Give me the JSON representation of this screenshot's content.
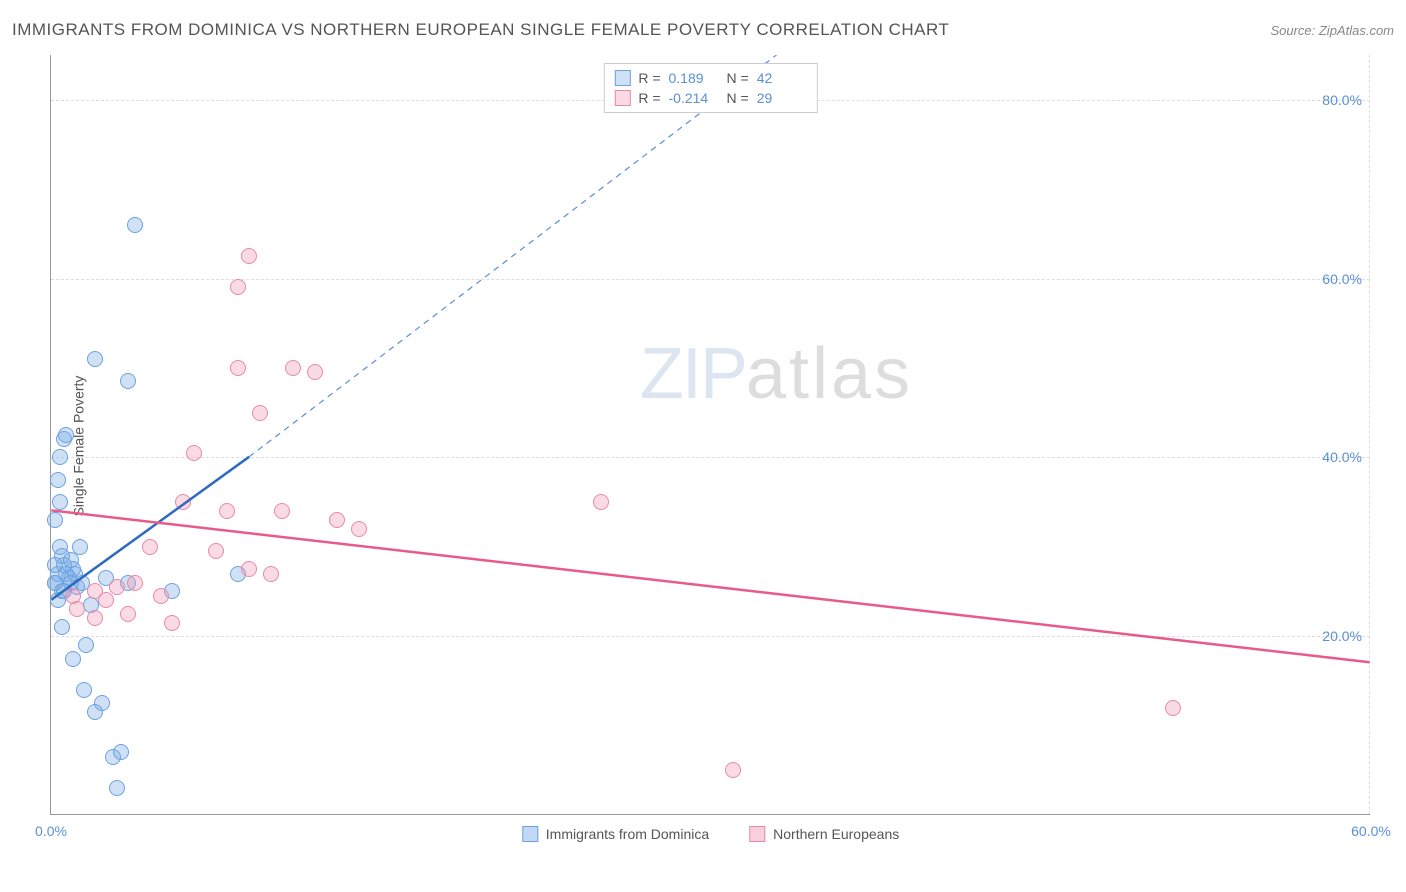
{
  "header": {
    "title": "IMMIGRANTS FROM DOMINICA VS NORTHERN EUROPEAN SINGLE FEMALE POVERTY CORRELATION CHART",
    "source": "Source: ZipAtlas.com"
  },
  "watermark": {
    "part1": "ZIP",
    "part2": "atlas"
  },
  "chart": {
    "type": "scatter",
    "y_label": "Single Female Poverty",
    "xlim": [
      0,
      60
    ],
    "ylim": [
      0,
      85
    ],
    "x_ticks": [
      {
        "v": 0,
        "label": "0.0%"
      },
      {
        "v": 60,
        "label": "60.0%"
      }
    ],
    "y_ticks": [
      {
        "v": 20,
        "label": "20.0%"
      },
      {
        "v": 40,
        "label": "40.0%"
      },
      {
        "v": 60,
        "label": "60.0%"
      },
      {
        "v": 80,
        "label": "80.0%"
      }
    ],
    "grid_color": "#dddddd",
    "axis_color": "#999999",
    "tick_label_color": "#5b8fd6",
    "background_color": "#ffffff",
    "marker_radius": 8,
    "marker_stroke_width": 1.5,
    "series": [
      {
        "name": "Immigrants from Dominica",
        "fill": "rgba(120,170,230,0.35)",
        "stroke": "#6aa3e0",
        "R": "0.189",
        "N": "42",
        "trend": {
          "x1": 0,
          "y1": 24,
          "x2": 9,
          "y2": 40,
          "color": "#2e6bc0",
          "width": 2.5,
          "dash": "none"
        },
        "trend_ext": {
          "x1": 9,
          "y1": 40,
          "x2": 33,
          "y2": 85,
          "color": "#5b8fd6",
          "width": 1.2,
          "dash": "6,5"
        },
        "points": [
          {
            "x": 0.2,
            "y": 26
          },
          {
            "x": 0.3,
            "y": 27
          },
          {
            "x": 0.5,
            "y": 25
          },
          {
            "x": 0.6,
            "y": 28
          },
          {
            "x": 0.4,
            "y": 30
          },
          {
            "x": 0.8,
            "y": 26.5
          },
          {
            "x": 1.0,
            "y": 27.5
          },
          {
            "x": 1.2,
            "y": 25.5
          },
          {
            "x": 0.5,
            "y": 29
          },
          {
            "x": 0.7,
            "y": 27
          },
          {
            "x": 1.4,
            "y": 26
          },
          {
            "x": 0.3,
            "y": 24
          },
          {
            "x": 0.9,
            "y": 28.5
          },
          {
            "x": 1.1,
            "y": 27
          },
          {
            "x": 0.2,
            "y": 26
          },
          {
            "x": 1.3,
            "y": 30
          },
          {
            "x": 0.5,
            "y": 21
          },
          {
            "x": 1.6,
            "y": 19
          },
          {
            "x": 1.0,
            "y": 17.5
          },
          {
            "x": 1.5,
            "y": 14
          },
          {
            "x": 2.0,
            "y": 11.5
          },
          {
            "x": 2.3,
            "y": 12.5
          },
          {
            "x": 2.8,
            "y": 6.5
          },
          {
            "x": 3.2,
            "y": 7
          },
          {
            "x": 3.0,
            "y": 3
          },
          {
            "x": 2.5,
            "y": 26.5
          },
          {
            "x": 3.5,
            "y": 26
          },
          {
            "x": 0.2,
            "y": 33
          },
          {
            "x": 0.4,
            "y": 35
          },
          {
            "x": 0.3,
            "y": 37.5
          },
          {
            "x": 0.4,
            "y": 40
          },
          {
            "x": 0.6,
            "y": 42
          },
          {
            "x": 0.7,
            "y": 42.5
          },
          {
            "x": 2.0,
            "y": 51
          },
          {
            "x": 3.5,
            "y": 48.5
          },
          {
            "x": 3.8,
            "y": 66
          },
          {
            "x": 8.5,
            "y": 27
          },
          {
            "x": 5.5,
            "y": 25
          },
          {
            "x": 1.8,
            "y": 23.5
          },
          {
            "x": 0.9,
            "y": 26
          },
          {
            "x": 0.6,
            "y": 25
          },
          {
            "x": 0.2,
            "y": 28
          }
        ]
      },
      {
        "name": "Northern Europeans",
        "fill": "rgba(240,150,180,0.35)",
        "stroke": "#e88aa8",
        "R": "-0.214",
        "N": "29",
        "trend": {
          "x1": 0,
          "y1": 34,
          "x2": 60,
          "y2": 17,
          "color": "#e85a8a",
          "width": 2.5,
          "dash": "none"
        },
        "points": [
          {
            "x": 1.0,
            "y": 24.5
          },
          {
            "x": 1.2,
            "y": 23
          },
          {
            "x": 2.0,
            "y": 25
          },
          {
            "x": 2.5,
            "y": 24
          },
          {
            "x": 3.0,
            "y": 25.5
          },
          {
            "x": 3.5,
            "y": 22.5
          },
          {
            "x": 3.8,
            "y": 26
          },
          {
            "x": 4.5,
            "y": 30
          },
          {
            "x": 5.0,
            "y": 24.5
          },
          {
            "x": 5.5,
            "y": 21.5
          },
          {
            "x": 6.0,
            "y": 35
          },
          {
            "x": 6.5,
            "y": 40.5
          },
          {
            "x": 7.5,
            "y": 29.5
          },
          {
            "x": 8.0,
            "y": 34
          },
          {
            "x": 8.5,
            "y": 50
          },
          {
            "x": 9.0,
            "y": 27.5
          },
          {
            "x": 9.5,
            "y": 45
          },
          {
            "x": 10.5,
            "y": 34
          },
          {
            "x": 11.0,
            "y": 50
          },
          {
            "x": 12.0,
            "y": 49.5
          },
          {
            "x": 13.0,
            "y": 33
          },
          {
            "x": 14.0,
            "y": 32
          },
          {
            "x": 8.5,
            "y": 59
          },
          {
            "x": 9.0,
            "y": 62.5
          },
          {
            "x": 25,
            "y": 35
          },
          {
            "x": 31,
            "y": 5
          },
          {
            "x": 51,
            "y": 12
          },
          {
            "x": 2.0,
            "y": 22
          },
          {
            "x": 10,
            "y": 27
          }
        ]
      }
    ],
    "legend_bottom": [
      {
        "label": "Immigrants from Dominica",
        "fill": "rgba(120,170,230,0.45)",
        "stroke": "#6aa3e0"
      },
      {
        "label": "Northern Europeans",
        "fill": "rgba(240,150,180,0.45)",
        "stroke": "#e88aa8"
      }
    ]
  }
}
